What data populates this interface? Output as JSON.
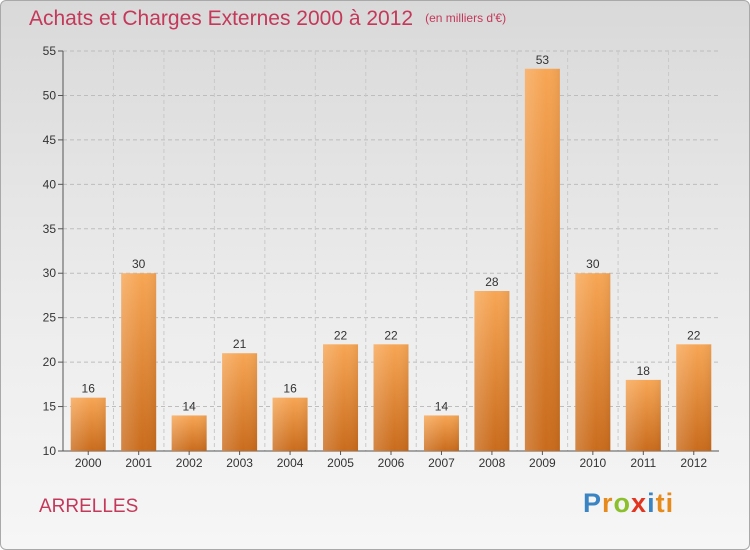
{
  "header": {
    "title": "Achats et Charges Externes 2000 à 2012",
    "unit": "(en milliers d'€)"
  },
  "footer": {
    "commune": "ARRELLES",
    "logo_letters": [
      "P",
      "r",
      "o",
      "x",
      "i",
      "ti"
    ]
  },
  "colors": {
    "title": "#c4385a",
    "bar_top": "#f7a655",
    "bar_bottom": "#c96b1c"
  },
  "chart_data": {
    "type": "bar",
    "title": "Achats et Charges Externes 2000 à 2012",
    "subtitle": "(en milliers d'€)",
    "xlabel": "",
    "ylabel": "",
    "categories": [
      "2000",
      "2001",
      "2002",
      "2003",
      "2004",
      "2005",
      "2006",
      "2007",
      "2008",
      "2009",
      "2010",
      "2011",
      "2012"
    ],
    "values": [
      16,
      30,
      14,
      21,
      16,
      22,
      22,
      14,
      28,
      53,
      30,
      18,
      22
    ],
    "ylim": [
      10,
      55
    ],
    "yticks": [
      10,
      15,
      20,
      25,
      30,
      35,
      40,
      45,
      50,
      55
    ],
    "grid": true,
    "data_labels": true
  }
}
